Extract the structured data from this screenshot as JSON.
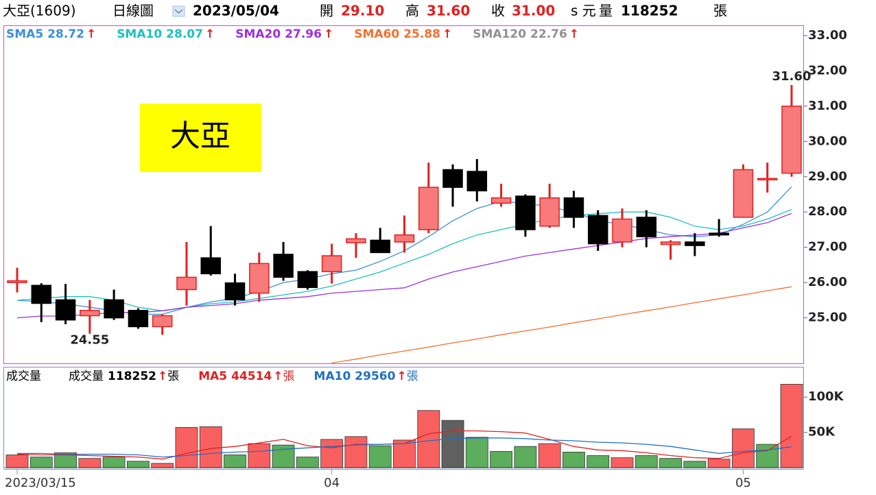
{
  "header": {
    "name": "大亞(1609)",
    "period": "日線圖",
    "date": "2023/05/04",
    "fields": [
      {
        "label": "開",
        "value": "29.10"
      },
      {
        "label": "高",
        "value": "31.60"
      },
      {
        "label": "收",
        "value": "31.00"
      }
    ],
    "unit": "s 元",
    "volume_label": "量"
  },
  "chart_data": {
    "type": "candlestick",
    "title_box": "大亞",
    "arrow": "↑",
    "unit": "張",
    "categories": [
      "2023/03/15",
      null,
      null,
      null,
      null,
      null,
      null,
      null,
      null,
      null,
      null,
      null,
      null,
      "04",
      null,
      null,
      null,
      null,
      null,
      null,
      null,
      null,
      null,
      null,
      null,
      null,
      null,
      null,
      null,
      null,
      "05",
      null,
      null
    ],
    "candles": {
      "open": [
        26.0,
        25.92,
        25.51,
        25.06,
        25.51,
        25.21,
        24.75,
        25.8,
        26.7,
        25.99,
        25.7,
        26.8,
        26.31,
        26.31,
        27.13,
        27.2,
        27.15,
        27.5,
        29.2,
        29.15,
        28.25,
        28.45,
        27.6,
        28.4,
        27.9,
        27.15,
        27.85,
        27.08,
        27.15,
        27.4,
        27.85,
        28.95,
        29.1
      ],
      "high": [
        26.42,
        25.98,
        25.96,
        25.51,
        25.8,
        25.27,
        25.1,
        27.15,
        27.6,
        26.25,
        26.85,
        27.15,
        26.35,
        27.1,
        27.4,
        27.55,
        27.9,
        29.4,
        29.35,
        29.5,
        28.8,
        28.5,
        28.8,
        28.6,
        28.05,
        28.1,
        28.05,
        27.2,
        27.4,
        27.8,
        29.35,
        29.4,
        31.6
      ],
      "low": [
        25.72,
        24.88,
        24.82,
        24.55,
        24.94,
        24.69,
        24.52,
        25.35,
        26.2,
        25.35,
        25.45,
        26.05,
        25.8,
        25.97,
        26.7,
        26.85,
        26.85,
        27.4,
        28.15,
        28.3,
        28.15,
        27.3,
        27.55,
        27.55,
        26.9,
        27.0,
        27.0,
        26.65,
        26.75,
        27.3,
        27.85,
        28.55,
        29.0
      ],
      "close": [
        26.05,
        25.41,
        24.94,
        25.21,
        25.0,
        24.75,
        25.06,
        26.15,
        26.25,
        25.51,
        26.54,
        26.15,
        25.86,
        26.76,
        27.24,
        26.85,
        27.35,
        28.7,
        28.7,
        28.6,
        28.4,
        27.5,
        28.4,
        27.85,
        27.1,
        27.8,
        27.3,
        27.15,
        27.05,
        27.35,
        29.2,
        28.95,
        31.0
      ],
      "up_color": "#f87a7a",
      "up_edge": "#e02020",
      "down_color": "#000000"
    },
    "ylim": [
      23.69,
      33.29
    ],
    "yticks": [
      {
        "value": 25,
        "label": "25.00"
      },
      {
        "value": 26,
        "label": "26.00"
      },
      {
        "value": 27,
        "label": "27.00"
      },
      {
        "value": 28,
        "label": "28.00"
      },
      {
        "value": 29,
        "label": "29.00"
      },
      {
        "value": 30,
        "label": "30.00"
      },
      {
        "value": 31,
        "label": "31.00"
      },
      {
        "value": 32,
        "label": "32.00"
      },
      {
        "value": 33,
        "label": "33.00"
      }
    ],
    "annotations": [
      {
        "value": 31.6,
        "label": "31.60"
      },
      {
        "value": 24.55,
        "label": "24.55"
      }
    ],
    "indicators": [
      {
        "name": "SMA5",
        "color": "#3a8fd6",
        "values": [
          25.5,
          25.45,
          25.4,
          25.3,
          25.2,
          25.1,
          25.1,
          25.3,
          25.45,
          25.55,
          25.75,
          26.0,
          26.1,
          26.25,
          26.35,
          26.6,
          26.9,
          27.3,
          27.75,
          28.1,
          28.3,
          28.25,
          28.15,
          28.0,
          27.75,
          27.65,
          27.5,
          27.35,
          27.3,
          27.35,
          27.65,
          28.0,
          28.72
        ]
      },
      {
        "name": "SMA10",
        "color": "#1fbfbf",
        "values": [
          25.5,
          25.55,
          25.6,
          25.6,
          25.5,
          25.3,
          25.2,
          25.3,
          25.4,
          25.45,
          25.55,
          25.65,
          25.75,
          25.9,
          26.1,
          26.3,
          26.55,
          26.8,
          27.1,
          27.35,
          27.5,
          27.65,
          27.8,
          27.9,
          27.95,
          28.0,
          28.0,
          27.85,
          27.6,
          27.5,
          27.6,
          27.8,
          28.07
        ]
      },
      {
        "name": "SMA20",
        "color": "#9b30e0",
        "values": [
          25.0,
          25.05,
          25.05,
          25.1,
          25.15,
          25.15,
          25.2,
          25.3,
          25.35,
          25.4,
          25.5,
          25.55,
          25.6,
          25.7,
          25.75,
          25.8,
          25.85,
          26.1,
          26.3,
          26.45,
          26.6,
          26.75,
          26.85,
          26.95,
          27.05,
          27.15,
          27.25,
          27.3,
          27.35,
          27.4,
          27.55,
          27.7,
          27.96
        ]
      },
      {
        "name": "SMA60",
        "color": "#f07030",
        "values": [
          null,
          null,
          null,
          null,
          null,
          null,
          null,
          null,
          null,
          null,
          null,
          null,
          null,
          23.72,
          23.83,
          23.95,
          24.06,
          24.17,
          24.29,
          24.4,
          24.52,
          24.63,
          24.74,
          24.86,
          24.97,
          25.09,
          25.2,
          25.31,
          25.43,
          25.54,
          25.65,
          25.77,
          25.88
        ]
      },
      {
        "name": "SMA120",
        "color": "#909090",
        "values": [
          null,
          null,
          null,
          null,
          null,
          null,
          null,
          null,
          null,
          null,
          null,
          null,
          null,
          null,
          null,
          null,
          null,
          null,
          null,
          null,
          null,
          null,
          null,
          null,
          null,
          null,
          null,
          null,
          null,
          null,
          null,
          null,
          22.76
        ]
      }
    ],
    "volume": {
      "type": "bar",
      "title": "成交量",
      "name": "成交量",
      "values": [
        18000,
        15000,
        21000,
        13000,
        15000,
        9000,
        6000,
        57000,
        58000,
        18000,
        34000,
        32000,
        15000,
        40000,
        44000,
        31000,
        39000,
        81000,
        67000,
        43000,
        23000,
        30000,
        34000,
        22000,
        17000,
        14000,
        17000,
        13000,
        9000,
        12000,
        55000,
        33000,
        118252
      ],
      "colors": [
        "#f86060",
        "#5cad5c",
        "#5cad5c",
        "#f86060",
        "#5cad5c",
        "#5cad5c",
        "#f86060",
        "#f86060",
        "#f86060",
        "#5cad5c",
        "#f86060",
        "#5cad5c",
        "#5cad5c",
        "#f86060",
        "#f86060",
        "#5cad5c",
        "#f86060",
        "#f86060",
        "#606060",
        "#5cad5c",
        "#5cad5c",
        "#5cad5c",
        "#f86060",
        "#5cad5c",
        "#5cad5c",
        "#f86060",
        "#5cad5c",
        "#5cad5c",
        "#5cad5c",
        "#f86060",
        "#f86060",
        "#5cad5c",
        "#f86060"
      ],
      "ylim": [
        0,
        142000
      ],
      "yticks": [
        {
          "value": 50000,
          "label": "50K"
        },
        {
          "value": 100000,
          "label": "100K"
        }
      ],
      "series": [
        {
          "name": "MA5",
          "color": "#e02020",
          "values": [
            19000,
            18000,
            18000,
            17000,
            16000,
            15000,
            12000,
            20000,
            27000,
            30000,
            35000,
            40000,
            31000,
            28000,
            33000,
            33000,
            34000,
            48000,
            52000,
            52000,
            51000,
            49000,
            40000,
            30000,
            25000,
            24000,
            21000,
            17000,
            14000,
            13000,
            21000,
            24000,
            44514
          ]
        },
        {
          "name": "MA10",
          "color": "#2070c0",
          "values": [
            20000,
            20000,
            19000,
            19000,
            19000,
            18000,
            15000,
            17000,
            20000,
            22000,
            23000,
            26000,
            28000,
            30000,
            32000,
            33000,
            34000,
            38000,
            41000,
            42000,
            42000,
            41000,
            39000,
            38000,
            36000,
            35000,
            33000,
            30000,
            25000,
            20000,
            23000,
            25000,
            29560
          ]
        }
      ]
    }
  }
}
